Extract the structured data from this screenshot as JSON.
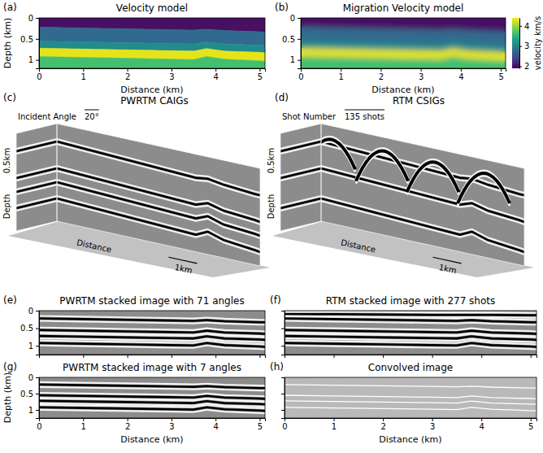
{
  "chart_data": [
    {
      "type": "heatmap",
      "panel": "(a)",
      "title": "Velocity model",
      "x": [
        0,
        1,
        2,
        3,
        3.5,
        3.8,
        4.2,
        5,
        5.12
      ],
      "interfaces": [
        [
          0.22,
          0.24,
          0.26,
          0.28,
          0.29,
          0.27,
          0.3,
          0.33,
          0.33
        ],
        [
          0.55,
          0.57,
          0.59,
          0.61,
          0.62,
          0.57,
          0.62,
          0.65,
          0.66
        ],
        [
          0.72,
          0.74,
          0.76,
          0.78,
          0.79,
          0.73,
          0.79,
          0.82,
          0.83
        ],
        [
          0.92,
          0.94,
          0.96,
          0.98,
          0.99,
          0.92,
          0.98,
          1.02,
          1.03
        ]
      ],
      "velocities": [
        2.0,
        2.75,
        3.1,
        4.3,
        3.65
      ],
      "zlim": [
        1.9,
        4.4
      ],
      "xlim": [
        0,
        5.12
      ],
      "ylim": [
        0,
        1.2
      ],
      "xticks": [
        0,
        1,
        2,
        3,
        4,
        5
      ],
      "yticks": [
        0,
        0.5,
        1
      ],
      "x_label": "Distance (km)",
      "y_label": "Depth (km)"
    },
    {
      "type": "heatmap",
      "panel": "(b)",
      "title": "Migration Velocity model",
      "x": [
        0,
        1,
        2,
        3,
        3.5,
        3.8,
        4.2,
        5,
        5.12
      ],
      "interfaces": [
        [
          0.22,
          0.24,
          0.26,
          0.28,
          0.29,
          0.27,
          0.3,
          0.33,
          0.33
        ],
        [
          0.55,
          0.57,
          0.59,
          0.61,
          0.62,
          0.57,
          0.62,
          0.65,
          0.66
        ],
        [
          0.72,
          0.74,
          0.76,
          0.78,
          0.79,
          0.73,
          0.79,
          0.82,
          0.83
        ],
        [
          0.92,
          0.94,
          0.96,
          0.98,
          0.99,
          0.92,
          0.98,
          1.02,
          1.03
        ]
      ],
      "velocities": [
        2.0,
        2.75,
        3.1,
        4.3,
        3.65
      ],
      "colorbar": {
        "range": [
          1.9,
          4.4
        ],
        "ticks": [
          2,
          3,
          4
        ],
        "label": "velocity km/s"
      },
      "xlim": [
        0,
        5.12
      ],
      "ylim": [
        0,
        1.2
      ],
      "xticks": [
        0,
        1,
        2,
        3,
        4,
        5
      ],
      "yticks": [
        0,
        0.5,
        1
      ],
      "x_label": "Distance (km)"
    },
    {
      "type": "cube",
      "panel": "(c)",
      "title": "PWRTM CAIGs",
      "annotations": [
        "Incident Angle",
        "20°",
        "Depth",
        "0.5km",
        "Distance",
        "1km"
      ],
      "x": [
        0,
        1,
        2,
        3,
        3.5,
        3.8,
        4.2,
        5,
        5.12
      ],
      "series": [
        {
          "values": [
            0.22,
            0.24,
            0.26,
            0.28,
            0.29,
            0.27,
            0.3,
            0.33,
            0.33
          ]
        },
        {
          "values": [
            0.55,
            0.57,
            0.59,
            0.61,
            0.62,
            0.57,
            0.62,
            0.65,
            0.66
          ]
        },
        {
          "values": [
            0.72,
            0.74,
            0.76,
            0.78,
            0.79,
            0.73,
            0.79,
            0.82,
            0.83
          ]
        },
        {
          "values": [
            0.92,
            0.94,
            0.96,
            0.98,
            0.99,
            0.92,
            0.98,
            1.02,
            1.03
          ]
        }
      ],
      "xlim": [
        0,
        5.12
      ],
      "ylim": [
        0,
        1.2
      ],
      "line_style": "wavelet"
    },
    {
      "type": "cube",
      "panel": "(d)",
      "title": "RTM CSIGs",
      "annotations": [
        "Shot Number",
        "135 shots",
        "Depth",
        "0.5km",
        "Distance",
        "1km"
      ],
      "x": [
        0,
        1,
        2,
        3,
        3.5,
        3.8,
        4.2,
        5,
        5.12
      ],
      "series": [
        {
          "values": [
            0.22,
            0.24,
            0.26,
            0.28,
            0.29,
            0.27,
            0.3,
            0.33,
            0.33
          ]
        },
        {
          "values": [
            0.55,
            0.57,
            0.59,
            0.61,
            0.62,
            0.57,
            0.62,
            0.65,
            0.66
          ]
        },
        {
          "values": [
            0.92,
            0.94,
            0.96,
            0.98,
            0.99,
            0.92,
            0.98,
            1.02,
            1.03
          ]
        }
      ],
      "xlim": [
        0,
        5.12
      ],
      "ylim": [
        0,
        1.2
      ],
      "line_style": "wavelet"
    },
    {
      "type": "image",
      "panel": "(e)",
      "title": "PWRTM stacked image with 71 angles",
      "x": [
        0,
        1,
        2,
        3,
        3.5,
        3.8,
        4.2,
        5,
        5.12
      ],
      "series": [
        {
          "values": [
            0.22,
            0.24,
            0.26,
            0.28,
            0.29,
            0.27,
            0.3,
            0.33,
            0.33
          ]
        },
        {
          "values": [
            0.55,
            0.57,
            0.59,
            0.61,
            0.62,
            0.57,
            0.62,
            0.65,
            0.66
          ]
        },
        {
          "values": [
            0.72,
            0.74,
            0.76,
            0.78,
            0.79,
            0.73,
            0.79,
            0.82,
            0.83
          ]
        },
        {
          "values": [
            0.92,
            0.94,
            0.96,
            0.98,
            0.99,
            0.92,
            0.98,
            1.02,
            1.03
          ]
        }
      ],
      "xlim": [
        0,
        5.12
      ],
      "ylim": [
        0,
        1.25
      ],
      "xticks": [
        0,
        1,
        2,
        3,
        4,
        5
      ],
      "yticks": [
        0,
        0.5,
        1
      ],
      "tick_labels": "y",
      "color": "#8c8c8c",
      "line_style": "wavelet"
    },
    {
      "type": "image",
      "panel": "(f)",
      "title": "RTM stacked image with 277 shots",
      "x": [
        0,
        1,
        2,
        3,
        3.5,
        3.8,
        4.2,
        5,
        5.12
      ],
      "series": [
        {
          "values": [
            0.1,
            0.1,
            0.11,
            0.12,
            0.12,
            0.12,
            0.12,
            0.13,
            0.13
          ]
        },
        {
          "values": [
            0.22,
            0.24,
            0.26,
            0.28,
            0.29,
            0.27,
            0.3,
            0.33,
            0.33
          ]
        },
        {
          "values": [
            0.55,
            0.57,
            0.59,
            0.61,
            0.62,
            0.57,
            0.62,
            0.65,
            0.66
          ]
        },
        {
          "values": [
            0.72,
            0.74,
            0.76,
            0.78,
            0.79,
            0.73,
            0.79,
            0.82,
            0.83
          ]
        },
        {
          "values": [
            0.92,
            0.94,
            0.96,
            0.98,
            0.99,
            0.92,
            0.98,
            1.02,
            1.03
          ]
        }
      ],
      "xlim": [
        0,
        5.12
      ],
      "ylim": [
        0,
        1.25
      ],
      "xticks": [
        0,
        1,
        2,
        3,
        4,
        5
      ],
      "yticks": [
        0,
        0.5,
        1
      ],
      "tick_labels": false,
      "color": "#8c8c8c",
      "line_style": "wavelet"
    },
    {
      "type": "image",
      "panel": "(g)",
      "title": "PWRTM stacked image with 7 angles",
      "x": [
        0,
        1,
        2,
        3,
        3.5,
        3.8,
        4.2,
        5,
        5.12
      ],
      "series": [
        {
          "values": [
            0.22,
            0.24,
            0.26,
            0.28,
            0.29,
            0.27,
            0.3,
            0.33,
            0.33
          ]
        },
        {
          "values": [
            0.55,
            0.57,
            0.59,
            0.61,
            0.62,
            0.57,
            0.62,
            0.65,
            0.66
          ]
        },
        {
          "values": [
            0.72,
            0.74,
            0.76,
            0.78,
            0.79,
            0.73,
            0.79,
            0.82,
            0.83
          ]
        },
        {
          "values": [
            0.92,
            0.94,
            0.96,
            0.98,
            0.99,
            0.92,
            0.98,
            1.02,
            1.03
          ]
        }
      ],
      "xlim": [
        0,
        5.12
      ],
      "ylim": [
        0,
        1.25
      ],
      "xticks": [
        0,
        1,
        2,
        3,
        4,
        5
      ],
      "yticks": [
        0,
        0.5,
        1
      ],
      "tick_labels": true,
      "color": "#8c8c8c",
      "line_style": "wavelet",
      "x_label": "Distance (km)",
      "y_label": "Depth (km)"
    },
    {
      "type": "image",
      "panel": "(h)",
      "title": "Convolved image",
      "x": [
        0,
        1,
        2,
        3,
        3.5,
        3.8,
        4.2,
        5,
        5.12
      ],
      "series": [
        {
          "values": [
            0.22,
            0.24,
            0.26,
            0.28,
            0.29,
            0.27,
            0.3,
            0.33,
            0.33
          ]
        },
        {
          "values": [
            0.55,
            0.57,
            0.59,
            0.61,
            0.62,
            0.57,
            0.62,
            0.65,
            0.66
          ]
        },
        {
          "values": [
            0.72,
            0.74,
            0.76,
            0.78,
            0.79,
            0.73,
            0.79,
            0.82,
            0.83
          ]
        },
        {
          "values": [
            0.92,
            0.94,
            0.96,
            0.98,
            0.99,
            0.92,
            0.98,
            1.02,
            1.03
          ]
        }
      ],
      "xlim": [
        0,
        5.12
      ],
      "ylim": [
        0,
        1.25
      ],
      "xticks": [
        0,
        1,
        2,
        3,
        4,
        5
      ],
      "yticks": [
        0,
        0.5,
        1
      ],
      "tick_labels": "x",
      "color": "#b9b9b9",
      "line_style": "thin",
      "x_label": "Distance (km)"
    }
  ]
}
